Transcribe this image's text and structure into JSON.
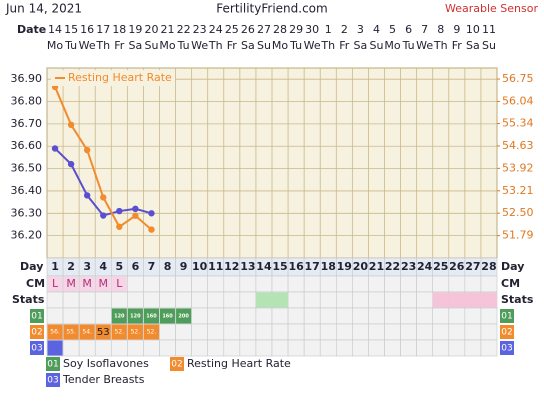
{
  "header": {
    "date": "Jun 14, 2021",
    "site": "FertilityFriend.com",
    "mode": "Wearable Sensor"
  },
  "chart_data": {
    "type": "line",
    "date_label": "Date",
    "dates": [
      "14",
      "15",
      "16",
      "17",
      "18",
      "19",
      "20",
      "21",
      "22",
      "23",
      "24",
      "25",
      "26",
      "27",
      "28",
      "29",
      "30",
      "1",
      "2",
      "3",
      "4",
      "5",
      "6",
      "7",
      "8",
      "9",
      "10",
      "11"
    ],
    "weekdays": [
      "Mo",
      "Tu",
      "We",
      "Th",
      "Fr",
      "Sa",
      "Su",
      "Mo",
      "Tu",
      "We",
      "Th",
      "Fr",
      "Sa",
      "Su",
      "Mo",
      "Tu",
      "We",
      "Th",
      "Fr",
      "Sa",
      "Su",
      "Mo",
      "Tu",
      "We",
      "Th",
      "Fr",
      "Sa",
      "Su"
    ],
    "day_label": "Day",
    "days": [
      1,
      2,
      3,
      4,
      5,
      6,
      7,
      8,
      9,
      10,
      11,
      12,
      13,
      14,
      15,
      16,
      17,
      18,
      19,
      20,
      21,
      22,
      23,
      24,
      25,
      26,
      27,
      28
    ],
    "ylim": [
      36.1,
      36.95
    ],
    "yticks": [
      {
        "value": 36.2,
        "label": "36.20"
      },
      {
        "value": 36.3,
        "label": "36.30"
      },
      {
        "value": 36.4,
        "label": "36.40"
      },
      {
        "value": 36.5,
        "label": "36.50"
      },
      {
        "value": 36.6,
        "label": "36.60"
      },
      {
        "value": 36.7,
        "label": "36.70"
      },
      {
        "value": 36.8,
        "label": "36.80"
      },
      {
        "value": 36.9,
        "label": "36.90"
      }
    ],
    "y2lim": [
      51.08,
      57.1
    ],
    "y2ticks": [
      51.79,
      {
        "value": 52.5,
        "label": "52.50"
      },
      53.21,
      53.92,
      54.63,
      55.34,
      56.04,
      56.75
    ],
    "grid": true,
    "legend": "upper left",
    "series": [
      {
        "color": "#5a4fcf",
        "values": [
          36.59,
          36.52,
          36.38,
          36.29,
          36.31,
          36.32,
          36.3,
          null,
          null,
          null,
          null,
          null,
          null,
          null,
          null,
          null,
          null,
          null,
          null,
          null,
          null,
          null,
          null,
          null,
          null,
          null,
          null,
          null
        ]
      },
      {
        "name": "Resting Heart Rate",
        "color": "#f28a2e",
        "axis": "y2",
        "values": [
          56.5,
          55.3,
          54.5,
          53,
          52.07,
          52.42,
          51.98,
          null,
          null,
          null,
          null,
          null,
          null,
          null,
          null,
          null,
          null,
          null,
          null,
          null,
          null,
          null,
          null,
          null,
          null,
          null,
          null,
          null
        ],
        "value_labels": [
          "56.",
          "55.",
          "54.",
          "53",
          "52.",
          "52.",
          "52.",
          null,
          null,
          null,
          null,
          null,
          null,
          null,
          null,
          null,
          null,
          null,
          null,
          null,
          null,
          null,
          null,
          null,
          null,
          null,
          null,
          null
        ]
      }
    ],
    "cm": {
      "label": "CM",
      "color": "#f6d6e6",
      "values": [
        "L",
        "M",
        "M",
        "M",
        "L",
        null,
        null,
        null,
        null,
        null,
        null,
        null,
        null,
        null,
        null,
        null,
        null,
        null,
        null,
        null,
        null,
        null,
        null,
        null,
        null,
        null,
        null,
        null
      ]
    },
    "stats": {
      "label": "Stats",
      "cells": [
        {
          "days": [
            14,
            15
          ],
          "color": "#b4e3b4"
        },
        {
          "days": [
            25,
            26,
            27,
            28
          ],
          "color": "#f6c4d8"
        }
      ]
    },
    "tracks": [
      {
        "id": "01",
        "name": "Soy Isoflavones",
        "color": "#4f9d5a",
        "values": [
          null,
          null,
          null,
          null,
          120,
          120,
          160,
          160,
          200,
          null,
          null,
          null,
          null,
          null,
          null,
          null,
          null,
          null,
          null,
          null,
          null,
          null,
          null,
          null,
          null,
          null,
          null,
          null
        ]
      },
      {
        "id": "02",
        "name": "Resting Heart Rate",
        "color": "#f28a2e"
      },
      {
        "id": "03",
        "name": "Tender Breasts",
        "color": "#5b63e0",
        "days": [
          1
        ]
      }
    ]
  }
}
